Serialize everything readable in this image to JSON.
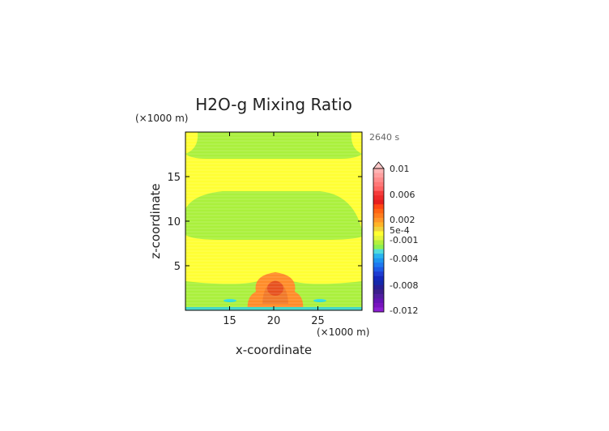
{
  "chart_data": {
    "type": "heatmap",
    "title": "H2O-g Mixing Ratio",
    "xlabel": "x-coordinate",
    "ylabel": "z-coordinate",
    "x_unit": "(×1000 m)",
    "y_unit": "(×1000 m)",
    "time_label": "2640 s",
    "xlim": [
      10,
      30
    ],
    "ylim": [
      0,
      20
    ],
    "x_ticks": [
      15,
      20,
      25
    ],
    "y_ticks": [
      5,
      10,
      15
    ],
    "colorbar_labels": [
      "0.01",
      "0.006",
      "0.002",
      "5e-4",
      "-0.001",
      "-0.004",
      "-0.008",
      "-0.012"
    ],
    "colors": {
      "yellow": "#ffff33",
      "light_green": "#aaf03c",
      "orange": "#ff8c28",
      "orange_dark": "#f07828",
      "red": "#e63c1e",
      "cyan": "#2ddcdc"
    }
  }
}
